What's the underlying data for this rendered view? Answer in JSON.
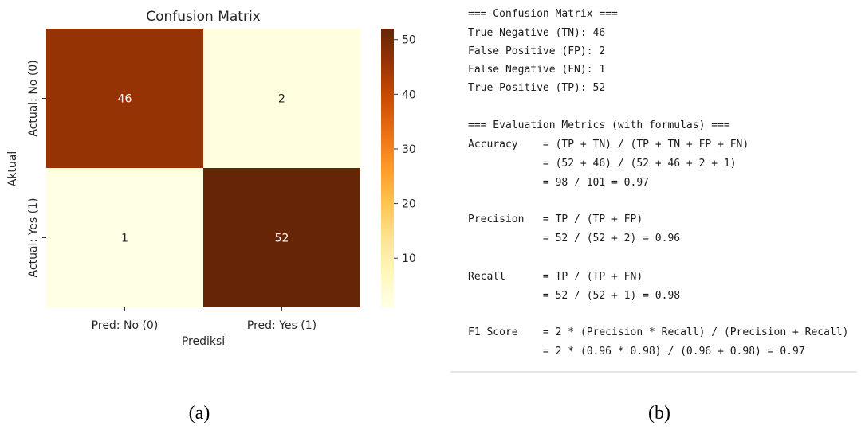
{
  "chart_data": {
    "type": "heatmap",
    "title": "Confusion Matrix",
    "xlabel": "Prediksi",
    "ylabel": "Aktual",
    "x_categories": [
      "Pred: No (0)",
      "Pred: Yes (1)"
    ],
    "y_categories": [
      "Actual: No (0)",
      "Actual: Yes (1)"
    ],
    "values": [
      [
        46,
        2
      ],
      [
        1,
        52
      ]
    ],
    "colorbar": {
      "range": [
        1,
        52
      ],
      "ticks": [
        10,
        20,
        30,
        40,
        50
      ]
    },
    "colormap": "YlOrBr"
  },
  "captions": {
    "left": "(a)",
    "right": "(b)"
  },
  "console": {
    "lines": [
      "=== Confusion Matrix ===",
      "True Negative (TN): 46",
      "False Positive (FP): 2",
      "False Negative (FN): 1",
      "True Positive (TP): 52",
      "",
      "=== Evaluation Metrics (with formulas) ===",
      "Accuracy    = (TP + TN) / (TP + TN + FP + FN)",
      "            = (52 + 46) / (52 + 46 + 2 + 1)",
      "            = 98 / 101 = 0.97",
      "",
      "Precision   = TP / (TP + FP)",
      "            = 52 / (52 + 2) = 0.96",
      "",
      "Recall      = TP / (TP + FN)",
      "            = 52 / (52 + 1) = 0.98",
      "",
      "F1 Score    = 2 * (Precision * Recall) / (Precision + Recall)",
      "            = 2 * (0.96 * 0.98) / (0.96 + 0.98) = 0.97"
    ]
  }
}
